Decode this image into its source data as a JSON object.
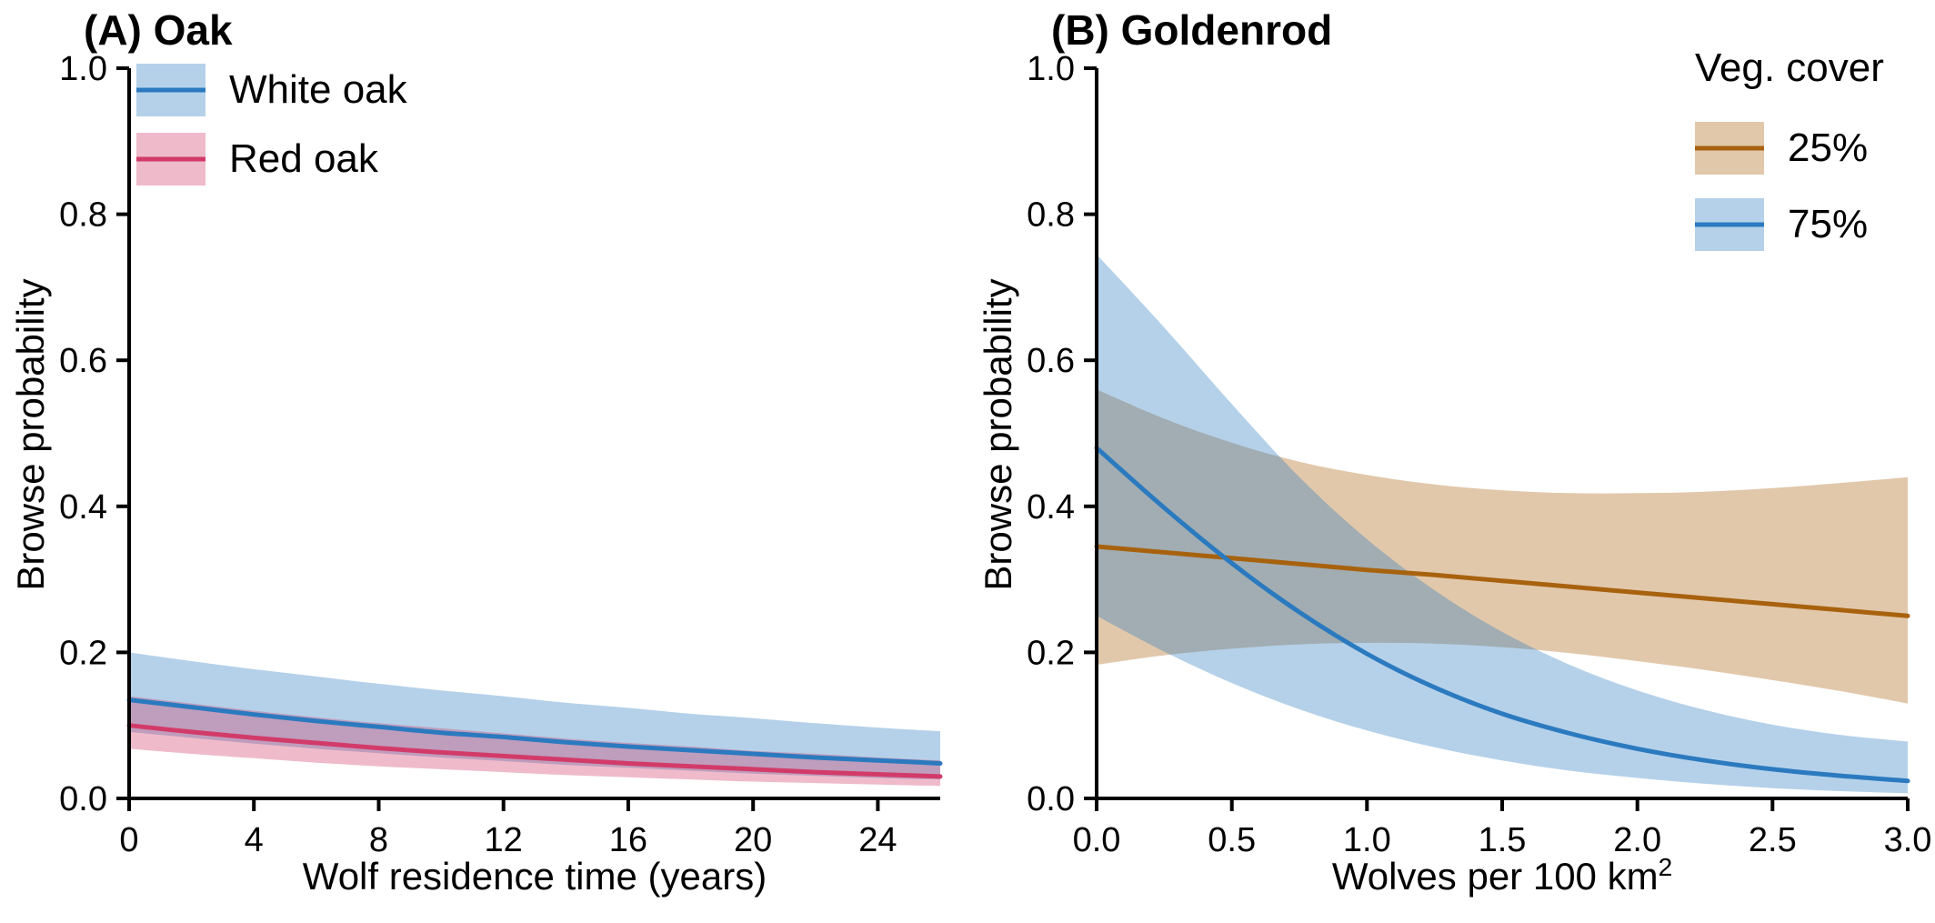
{
  "chart_data": [
    {
      "type": "line",
      "panel": "A",
      "title": "(A) Oak",
      "xlabel": "Wolf residence time (years)",
      "ylabel": "Browse probability",
      "xlim": [
        0,
        26
      ],
      "ylim": [
        0,
        1.0
      ],
      "xticks": [
        0,
        4,
        8,
        12,
        16,
        20,
        24
      ],
      "xtick_labels": [
        "0",
        "4",
        "8",
        "12",
        "16",
        "20",
        "24"
      ],
      "yticks": [
        0,
        0.2,
        0.4,
        0.6,
        0.8,
        1.0
      ],
      "ytick_labels": [
        "0.0",
        "0.2",
        "0.4",
        "0.6",
        "0.8",
        "1.0"
      ],
      "grid": false,
      "legend_position": "top-left",
      "x": [
        0,
        2,
        4,
        6,
        8,
        10,
        12,
        14,
        16,
        18,
        20,
        22,
        24,
        26
      ],
      "series": [
        {
          "name": "White oak",
          "color": "#2b7abf",
          "values": [
            0.135,
            0.125,
            0.115,
            0.106,
            0.098,
            0.09,
            0.084,
            0.077,
            0.071,
            0.066,
            0.061,
            0.056,
            0.052,
            0.048
          ],
          "upper": [
            0.2,
            0.188,
            0.177,
            0.167,
            0.157,
            0.148,
            0.14,
            0.131,
            0.124,
            0.116,
            0.11,
            0.103,
            0.097,
            0.092
          ],
          "lower": [
            0.091,
            0.083,
            0.075,
            0.068,
            0.062,
            0.056,
            0.051,
            0.046,
            0.042,
            0.038,
            0.034,
            0.031,
            0.028,
            0.026
          ]
        },
        {
          "name": "Red oak",
          "color": "#d23b69",
          "values": [
            0.1,
            0.091,
            0.083,
            0.076,
            0.069,
            0.063,
            0.058,
            0.053,
            0.048,
            0.044,
            0.04,
            0.036,
            0.033,
            0.03
          ],
          "upper": [
            0.14,
            0.13,
            0.12,
            0.111,
            0.103,
            0.096,
            0.089,
            0.082,
            0.076,
            0.071,
            0.065,
            0.061,
            0.056,
            0.052
          ],
          "lower": [
            0.068,
            0.061,
            0.055,
            0.049,
            0.044,
            0.04,
            0.036,
            0.032,
            0.029,
            0.026,
            0.023,
            0.021,
            0.019,
            0.017
          ]
        }
      ]
    },
    {
      "type": "line",
      "panel": "B",
      "title": "(B) Goldenrod",
      "xlabel": "Wolves per 100 km",
      "xlabel_sup": "2",
      "xlabel_full": "Wolves per 100 km²",
      "ylabel": "Browse probability",
      "legend_title": "Veg. cover",
      "xlim": [
        0,
        3
      ],
      "ylim": [
        0,
        1.0
      ],
      "xticks": [
        0,
        0.5,
        1.0,
        1.5,
        2.0,
        2.5,
        3.0
      ],
      "xtick_labels": [
        "0.0",
        "0.5",
        "1.0",
        "1.5",
        "2.0",
        "2.5",
        "3.0"
      ],
      "yticks": [
        0,
        0.2,
        0.4,
        0.6,
        0.8,
        1.0
      ],
      "ytick_labels": [
        "0.0",
        "0.2",
        "0.4",
        "0.6",
        "0.8",
        "1.0"
      ],
      "grid": false,
      "legend_position": "top-right",
      "x": [
        0,
        0.25,
        0.5,
        0.75,
        1,
        1.25,
        1.5,
        1.75,
        2,
        2.25,
        2.5,
        2.75,
        3
      ],
      "series": [
        {
          "name": "25%",
          "color": "#a8620e",
          "values": [
            0.345,
            0.337,
            0.329,
            0.321,
            0.313,
            0.306,
            0.298,
            0.29,
            0.282,
            0.274,
            0.266,
            0.258,
            0.25
          ],
          "upper": [
            0.56,
            0.52,
            0.487,
            0.461,
            0.443,
            0.43,
            0.422,
            0.418,
            0.418,
            0.42,
            0.425,
            0.432,
            0.44
          ],
          "lower": [
            0.183,
            0.196,
            0.205,
            0.211,
            0.213,
            0.212,
            0.207,
            0.199,
            0.188,
            0.176,
            0.162,
            0.147,
            0.13
          ]
        },
        {
          "name": "75%",
          "color": "#2b7abf",
          "values": [
            0.48,
            0.398,
            0.322,
            0.255,
            0.198,
            0.152,
            0.116,
            0.089,
            0.068,
            0.052,
            0.04,
            0.031,
            0.024
          ],
          "upper": [
            0.745,
            0.645,
            0.54,
            0.44,
            0.355,
            0.285,
            0.228,
            0.183,
            0.148,
            0.121,
            0.101,
            0.087,
            0.078
          ],
          "lower": [
            0.25,
            0.201,
            0.158,
            0.122,
            0.093,
            0.07,
            0.052,
            0.038,
            0.028,
            0.02,
            0.014,
            0.01,
            0.007
          ]
        }
      ]
    }
  ]
}
